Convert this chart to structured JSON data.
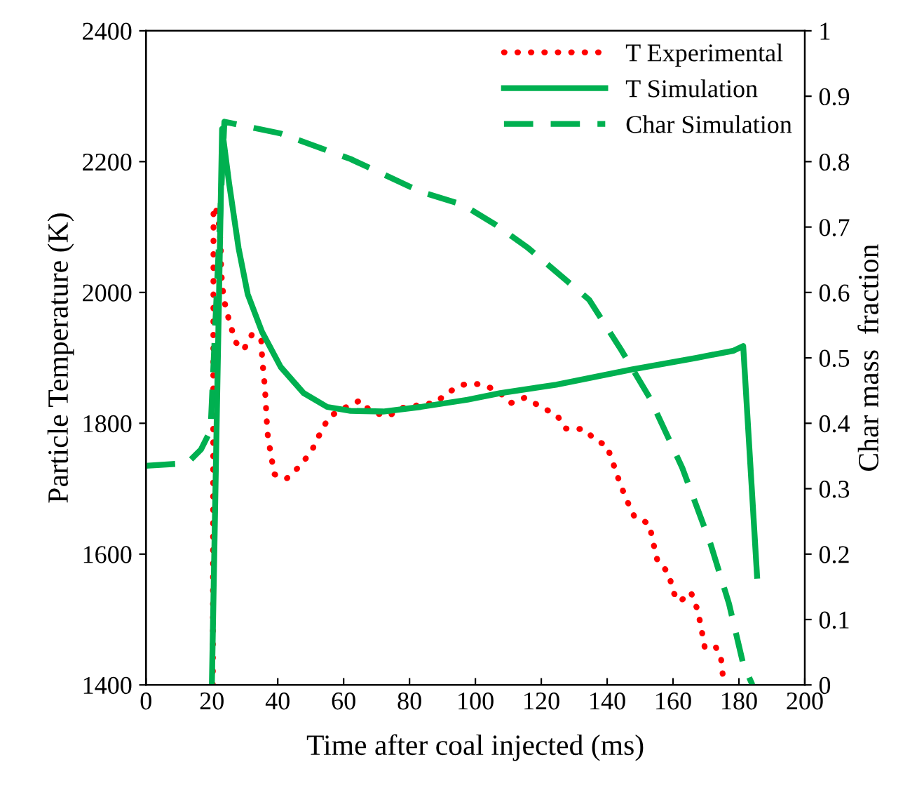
{
  "chart_data": {
    "type": "line",
    "xlabel": "Time after coal injected (ms)",
    "ylabel": "Particle Temperature (K)",
    "y2label": "Char mass  fraction",
    "xlim": [
      0,
      200
    ],
    "xticks": [
      0,
      20,
      40,
      60,
      80,
      100,
      120,
      140,
      160,
      180,
      200
    ],
    "ylim": [
      1400,
      2400
    ],
    "yticks": [
      1400,
      1600,
      1800,
      2000,
      2200,
      2400
    ],
    "y2lim": [
      0,
      1
    ],
    "y2ticks": [
      0,
      0.1,
      0.2,
      0.3,
      0.4,
      0.5,
      0.6,
      0.7,
      0.8,
      0.9,
      1
    ],
    "grid": false,
    "legend": "top right",
    "series": [
      {
        "name": "T Experimental",
        "color": "#ff0000",
        "line_style": "dotted",
        "x": [
          20.3,
          20.5,
          21.7,
          22.4,
          22.7,
          22.8,
          23.2,
          24.1,
          25.6,
          27.4,
          29.6,
          32.3,
          35,
          35.3,
          35.9,
          36.3,
          36.6,
          37,
          38,
          39,
          42.6,
          46.8,
          50.3,
          52.8,
          55.6,
          60.1,
          65,
          68.4,
          73.7,
          77.6,
          80.1,
          82.9,
          87.9,
          91.5,
          96.4,
          101.1,
          106.4,
          110.8,
          114.9,
          120,
          124.8,
          127.4,
          132.8,
          136.9,
          139.9,
          141.8,
          143.7,
          145.8,
          148.2,
          152.8,
          154,
          155.3,
          158.7,
          160,
          162,
          165.4,
          167.5,
          168.6,
          169.6,
          172.8,
          174.6,
          175.2
        ],
        "values": [
          1400,
          2132,
          2122,
          2093,
          2065,
          2036,
          2007,
          1979,
          1950,
          1923,
          1912,
          1937,
          1926,
          1896,
          1866,
          1838,
          1808,
          1780,
          1750,
          1722,
          1715,
          1735,
          1758,
          1784,
          1810,
          1823,
          1835,
          1817,
          1811,
          1824,
          1823,
          1829,
          1831,
          1847,
          1859,
          1860,
          1851,
          1831,
          1839,
          1825,
          1812,
          1792,
          1791,
          1773,
          1766,
          1739,
          1711,
          1684,
          1658,
          1646,
          1617,
          1589,
          1571,
          1542,
          1527,
          1542,
          1514,
          1486,
          1458,
          1460,
          1439,
          1410
        ]
      },
      {
        "name": "T Simulation",
        "color": "#00b050",
        "line_style": "solid",
        "x": [
          20,
          23.1,
          25.2,
          28.1,
          30.9,
          35.2,
          40.9,
          47.9,
          55,
          62.1,
          72,
          83.4,
          97.6,
          107.5,
          124.5,
          147.2,
          167.1,
          178.4,
          181.3,
          185.5
        ],
        "values": [
          1400,
          2250,
          2168,
          2068,
          1997,
          1940,
          1886,
          1846,
          1825,
          1819,
          1818,
          1825,
          1836,
          1846,
          1859,
          1882,
          1900,
          1911,
          1918,
          1567
        ]
      },
      {
        "name": "Char Simulation",
        "color": "#00b050",
        "line_style": "dashed",
        "axis": "y2",
        "x": [
          0,
          12.5,
          16.7,
          19.6,
          23.8,
          40.9,
          62.1,
          83.4,
          96.2,
          106,
          116,
          134.5,
          144.4,
          152.9,
          162.8,
          171.3,
          177,
          181.3,
          184.1
        ],
        "values": [
          0.335,
          0.339,
          0.36,
          0.389,
          0.861,
          0.843,
          0.804,
          0.754,
          0.734,
          0.704,
          0.668,
          0.589,
          0.511,
          0.439,
          0.332,
          0.217,
          0.124,
          0.032,
          0
        ]
      }
    ]
  }
}
